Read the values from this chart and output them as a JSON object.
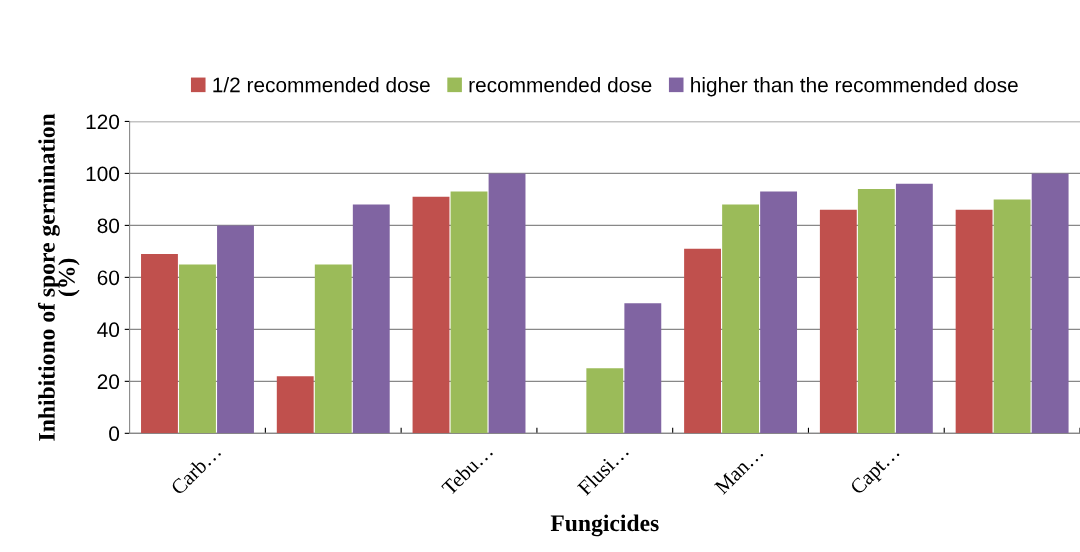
{
  "chart_data": {
    "type": "bar",
    "xlabel": "Fungicides",
    "ylabel": "Inhibitiono of spore germination\n(%)",
    "categories": [
      "Carb…",
      null,
      "Tebu…",
      "Flusi…",
      "Man…",
      "Capt…",
      null
    ],
    "series": [
      {
        "name": "1/2 recommended dose",
        "color": "#c0504d",
        "values": [
          69,
          22,
          91,
          0,
          71,
          86,
          86
        ]
      },
      {
        "name": "recommended dose",
        "color": "#9bbb59",
        "values": [
          65,
          65,
          93,
          25,
          88,
          94,
          90
        ]
      },
      {
        "name": "higher than the recommended dose",
        "color": "#8064a2",
        "values": [
          80,
          88,
          100,
          50,
          93,
          96,
          100
        ]
      }
    ],
    "ylim": [
      0,
      120
    ],
    "yticks": [
      0,
      20,
      40,
      60,
      80,
      100,
      120
    ],
    "grid": "y",
    "legend": "top"
  }
}
